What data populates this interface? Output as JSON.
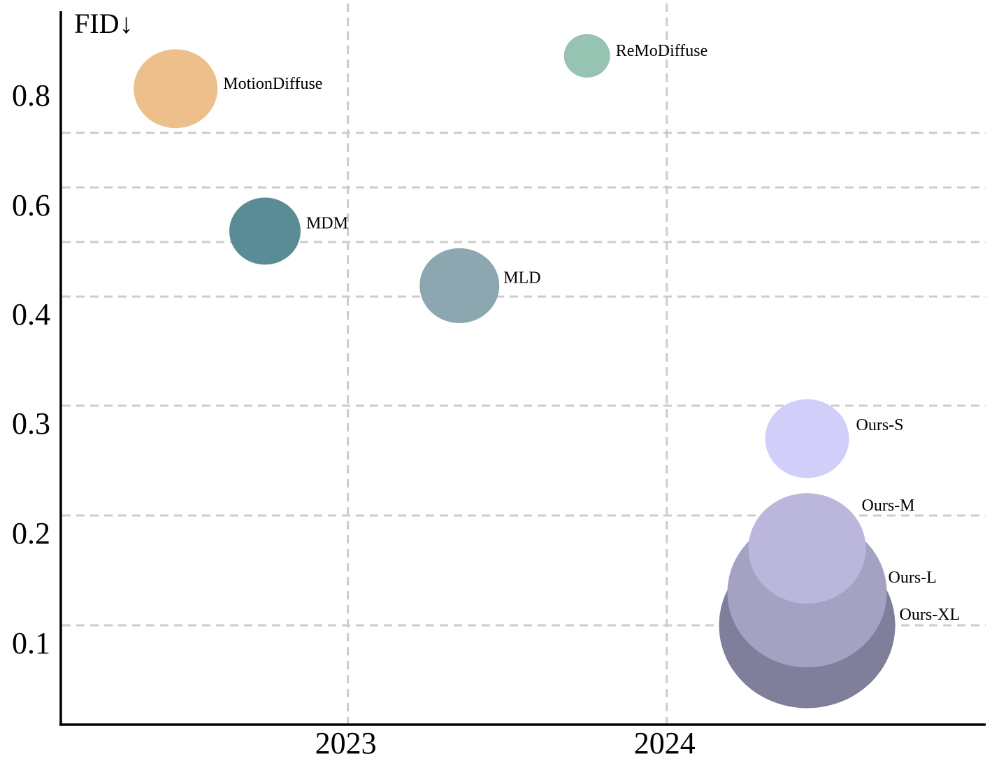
{
  "chart_data": {
    "type": "scatter",
    "ylabel": "FID↓",
    "xlabel": "",
    "xlim": [
      2022.1,
      2025.0
    ],
    "x_ticks": [
      2023,
      2024
    ],
    "x_tick_labels": [
      "2023",
      "2024"
    ],
    "y_ticks": [
      0.1,
      0.2,
      0.3,
      0.4,
      0.6,
      0.8
    ],
    "y_tick_labels": [
      "0.1",
      "0.2",
      "0.3",
      "0.4",
      "0.6",
      "0.8"
    ],
    "grid": true,
    "y_grid_lines": [
      0.1,
      0.2,
      0.3,
      0.4,
      0.5,
      0.6,
      0.7
    ],
    "bubble_size_meaning": "relative model size",
    "points": [
      {
        "name": "MotionDiffuse",
        "x": 2022.46,
        "y": 0.78,
        "size": 1.0,
        "color": "#EDBF8A"
      },
      {
        "name": "MDM",
        "x": 2022.74,
        "y": 0.52,
        "size": 0.85,
        "color": "#5A8C96"
      },
      {
        "name": "MLD",
        "x": 2023.35,
        "y": 0.42,
        "size": 0.95,
        "color": "#8CA7AF"
      },
      {
        "name": "ReMoDiffuse",
        "x": 2023.75,
        "y": 0.84,
        "size": 0.55,
        "color": "#97C3B2"
      },
      {
        "name": "Ours-S",
        "x": 2024.44,
        "y": 0.27,
        "size": 1.0,
        "color": "#D2CEFA"
      },
      {
        "name": "Ours-M",
        "x": 2024.44,
        "y": 0.17,
        "size": 1.4,
        "color": "#BBB6DC"
      },
      {
        "name": "Ours-L",
        "x": 2024.44,
        "y": 0.13,
        "size": 1.9,
        "color": "#A3A2C3"
      },
      {
        "name": "Ours-XL",
        "x": 2024.44,
        "y": 0.1,
        "size": 2.1,
        "color": "#7F7E9B"
      }
    ],
    "draw_order": [
      "MotionDiffuse",
      "MDM",
      "MLD",
      "ReMoDiffuse",
      "Ours-S",
      "Ours-XL",
      "Ours-L",
      "Ours-M"
    ]
  }
}
